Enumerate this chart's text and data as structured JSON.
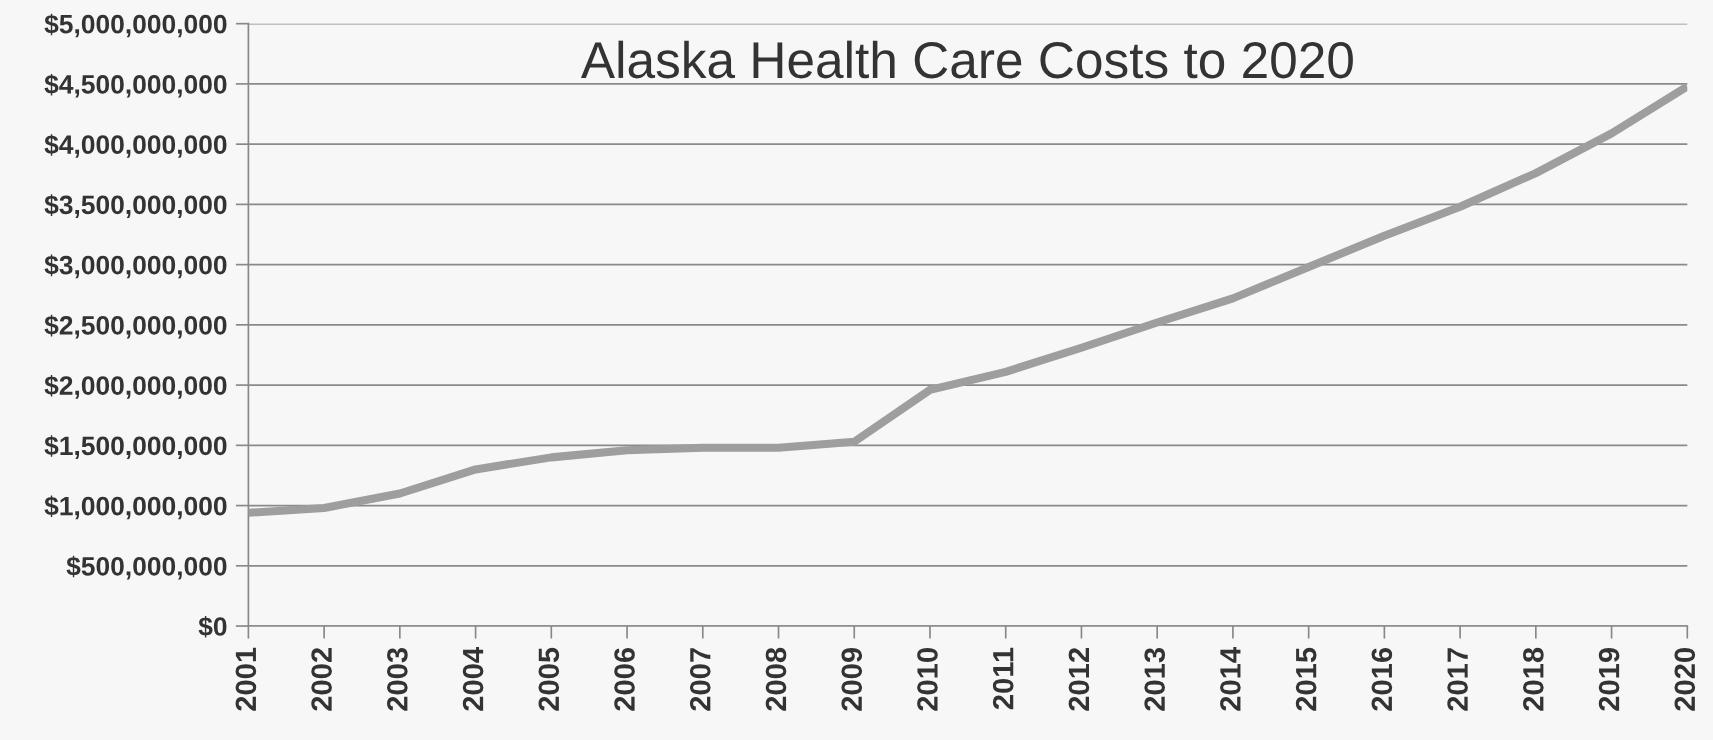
{
  "chart_data": {
    "type": "line",
    "title": "Alaska Health Care Costs to 2020",
    "categories": [
      "2001",
      "2002",
      "2003",
      "2004",
      "2005",
      "2006",
      "2007",
      "2008",
      "2009",
      "2010",
      "2011",
      "2012",
      "2013",
      "2014",
      "2015",
      "2016",
      "2017",
      "2018",
      "2019",
      "2020"
    ],
    "series": [
      {
        "color": "#9e9e9e",
        "values": [
          940000000,
          980000000,
          1100000000,
          1300000000,
          1400000000,
          1460000000,
          1480000000,
          1480000000,
          1530000000,
          1960000000,
          2110000000,
          2310000000,
          2520000000,
          2720000000,
          2980000000,
          3240000000,
          3480000000,
          3760000000,
          4090000000,
          4480000000
        ]
      }
    ],
    "ylim": [
      0,
      5000000000
    ],
    "yticks": [
      {
        "value": 0,
        "label": "$0"
      },
      {
        "value": 500000000,
        "label": "$500,000,000"
      },
      {
        "value": 1000000000,
        "label": "$1,000,000,000"
      },
      {
        "value": 1500000000,
        "label": "$1,500,000,000"
      },
      {
        "value": 2000000000,
        "label": "$2,000,000,000"
      },
      {
        "value": 2500000000,
        "label": "$2,500,000,000"
      },
      {
        "value": 3000000000,
        "label": "$3,000,000,000"
      },
      {
        "value": 3500000000,
        "label": "$3,500,000,000"
      },
      {
        "value": 4000000000,
        "label": "$4,000,000,000"
      },
      {
        "value": 4500000000,
        "label": "$4,500,000,000"
      },
      {
        "value": 5000000000,
        "label": "$5,000,000,000"
      }
    ],
    "grid": "y"
  }
}
